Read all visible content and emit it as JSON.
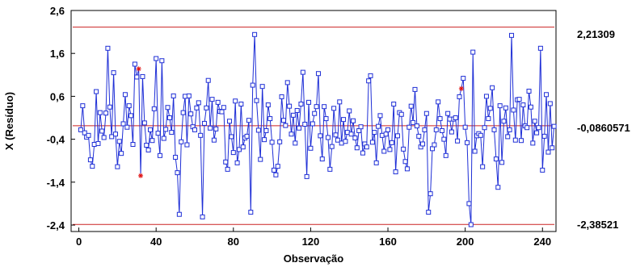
{
  "chart_data": {
    "type": "line",
    "title": "",
    "xlabel": "Observação",
    "ylabel": "X (Resíduo)",
    "xlim": [
      -4,
      247
    ],
    "ylim": [
      -2.55,
      2.6
    ],
    "x_ticks": [
      "0",
      "40",
      "80",
      "120",
      "160",
      "200",
      "240"
    ],
    "y_ticks": [
      "2,6",
      "1,6",
      "0,6",
      "-0,4",
      "-1,4",
      "-2,4"
    ],
    "grid": false,
    "legend": "none",
    "control_limits": {
      "ucl": 2.21309,
      "center": -0.0860571,
      "lcl": -2.38521,
      "ucl_label": "2,21309",
      "center_label": "-0,0860571",
      "lcl_label": "-2,38521"
    },
    "colors": {
      "series": "#1f2fd6",
      "limits": "#cc2222",
      "out_of_control": "#e01010"
    },
    "series": [
      {
        "values": [
          -0.18,
          0.38,
          -0.25,
          -0.35,
          -0.31,
          -0.88,
          -1.03,
          -0.52,
          0.71,
          -0.5,
          0.22,
          -0.21,
          -0.36,
          0.21,
          1.72,
          0.35,
          -0.34,
          1.15,
          -0.28,
          -1.04,
          -0.45,
          -0.73,
          -0.04,
          0.64,
          -0.12,
          0.38,
          0.15,
          -0.52,
          1.35,
          1.05,
          1.24,
          -1.25,
          1.06,
          -0.02,
          -0.54,
          -0.65,
          -0.18,
          -0.43,
          0.31,
          1.48,
          -0.26,
          -0.78,
          1.43,
          -0.38,
          -0.17,
          0.34,
          0.1,
          -0.24,
          0.61,
          -0.82,
          -1.18,
          -2.15,
          -0.46,
          0.22,
          0.6,
          -0.53,
          0.61,
          0.19,
          -0.11,
          -0.18,
          0.33,
          0.45,
          -0.31,
          -2.21,
          -0.03,
          0.33,
          0.97,
          -0.14,
          0.53,
          -0.42,
          -0.16,
          0.46,
          0.25,
          0.24,
          0.34,
          -0.93,
          -1.1,
          0.02,
          -0.34,
          -0.71,
          0.49,
          -0.95,
          -0.64,
          0.42,
          -0.58,
          -0.37,
          -0.33,
          0.04,
          -2.1,
          0.86,
          2.04,
          0.5,
          -0.19,
          -0.87,
          0.83,
          -0.41,
          -0.2,
          0.4,
          0.08,
          -0.47,
          -1.12,
          -1.23,
          -1.03,
          -0.46,
          0.59,
          0.04,
          -0.08,
          0.92,
          0.37,
          -0.28,
          0.16,
          -0.49,
          0.27,
          -0.14,
          0.42,
          1.16,
          -0.05,
          -1.27,
          0.46,
          -0.61,
          -0.04,
          0.2,
          0.36,
          1.13,
          -0.32,
          -0.86,
          0.36,
          0.08,
          -0.36,
          -1.1,
          -0.57,
          0.32,
          -0.3,
          -0.42,
          0.47,
          -0.49,
          0.06,
          -0.45,
          -0.24,
          0.26,
          -0.28,
          0.03,
          -0.37,
          -0.6,
          -0.2,
          -0.11,
          -0.72,
          -0.51,
          -0.58,
          0.96,
          1.08,
          -0.47,
          -0.24,
          -0.95,
          -0.1,
          0.15,
          -0.31,
          -0.68,
          -0.28,
          -0.18,
          -0.64,
          -0.48,
          0.42,
          -1.16,
          -0.32,
          0.22,
          0.18,
          -0.63,
          -0.92,
          -1.09,
          -0.12,
          0.37,
          -0.01,
          0.76,
          -0.09,
          -0.33,
          -0.58,
          -0.51,
          -0.18,
          0.2,
          -2.1,
          -1.67,
          -0.62,
          -0.53,
          -0.18,
          0.47,
          0.08,
          -0.2,
          -0.4,
          -0.78,
          0.2,
          0.07,
          -0.23,
          0.07,
          0.1,
          -0.44,
          0.59,
          0.78,
          1.02,
          -0.12,
          -0.48,
          -1.9,
          -2.39,
          1.63,
          -0.68,
          -0.32,
          -0.27,
          -0.31,
          -1.04,
          -0.13,
          0.6,
          0.08,
          0.32,
          0.8,
          -0.18,
          -0.86,
          -1.52,
          0.38,
          -0.94,
          0.02,
          0.33,
          -0.34,
          -0.18,
          2.02,
          0.28,
          -0.42,
          0.52,
          0.53,
          -0.43,
          0.4,
          -0.09,
          -0.13,
          0.72,
          0.35,
          -0.49,
          0.02,
          -0.25,
          -0.13,
          1.72,
          -1.12,
          -0.33,
          0.64,
          -0.7,
          0.43,
          -0.6,
          -0.1
        ],
        "out_of_control_indices": [
          31,
          32,
          198
        ]
      }
    ]
  }
}
